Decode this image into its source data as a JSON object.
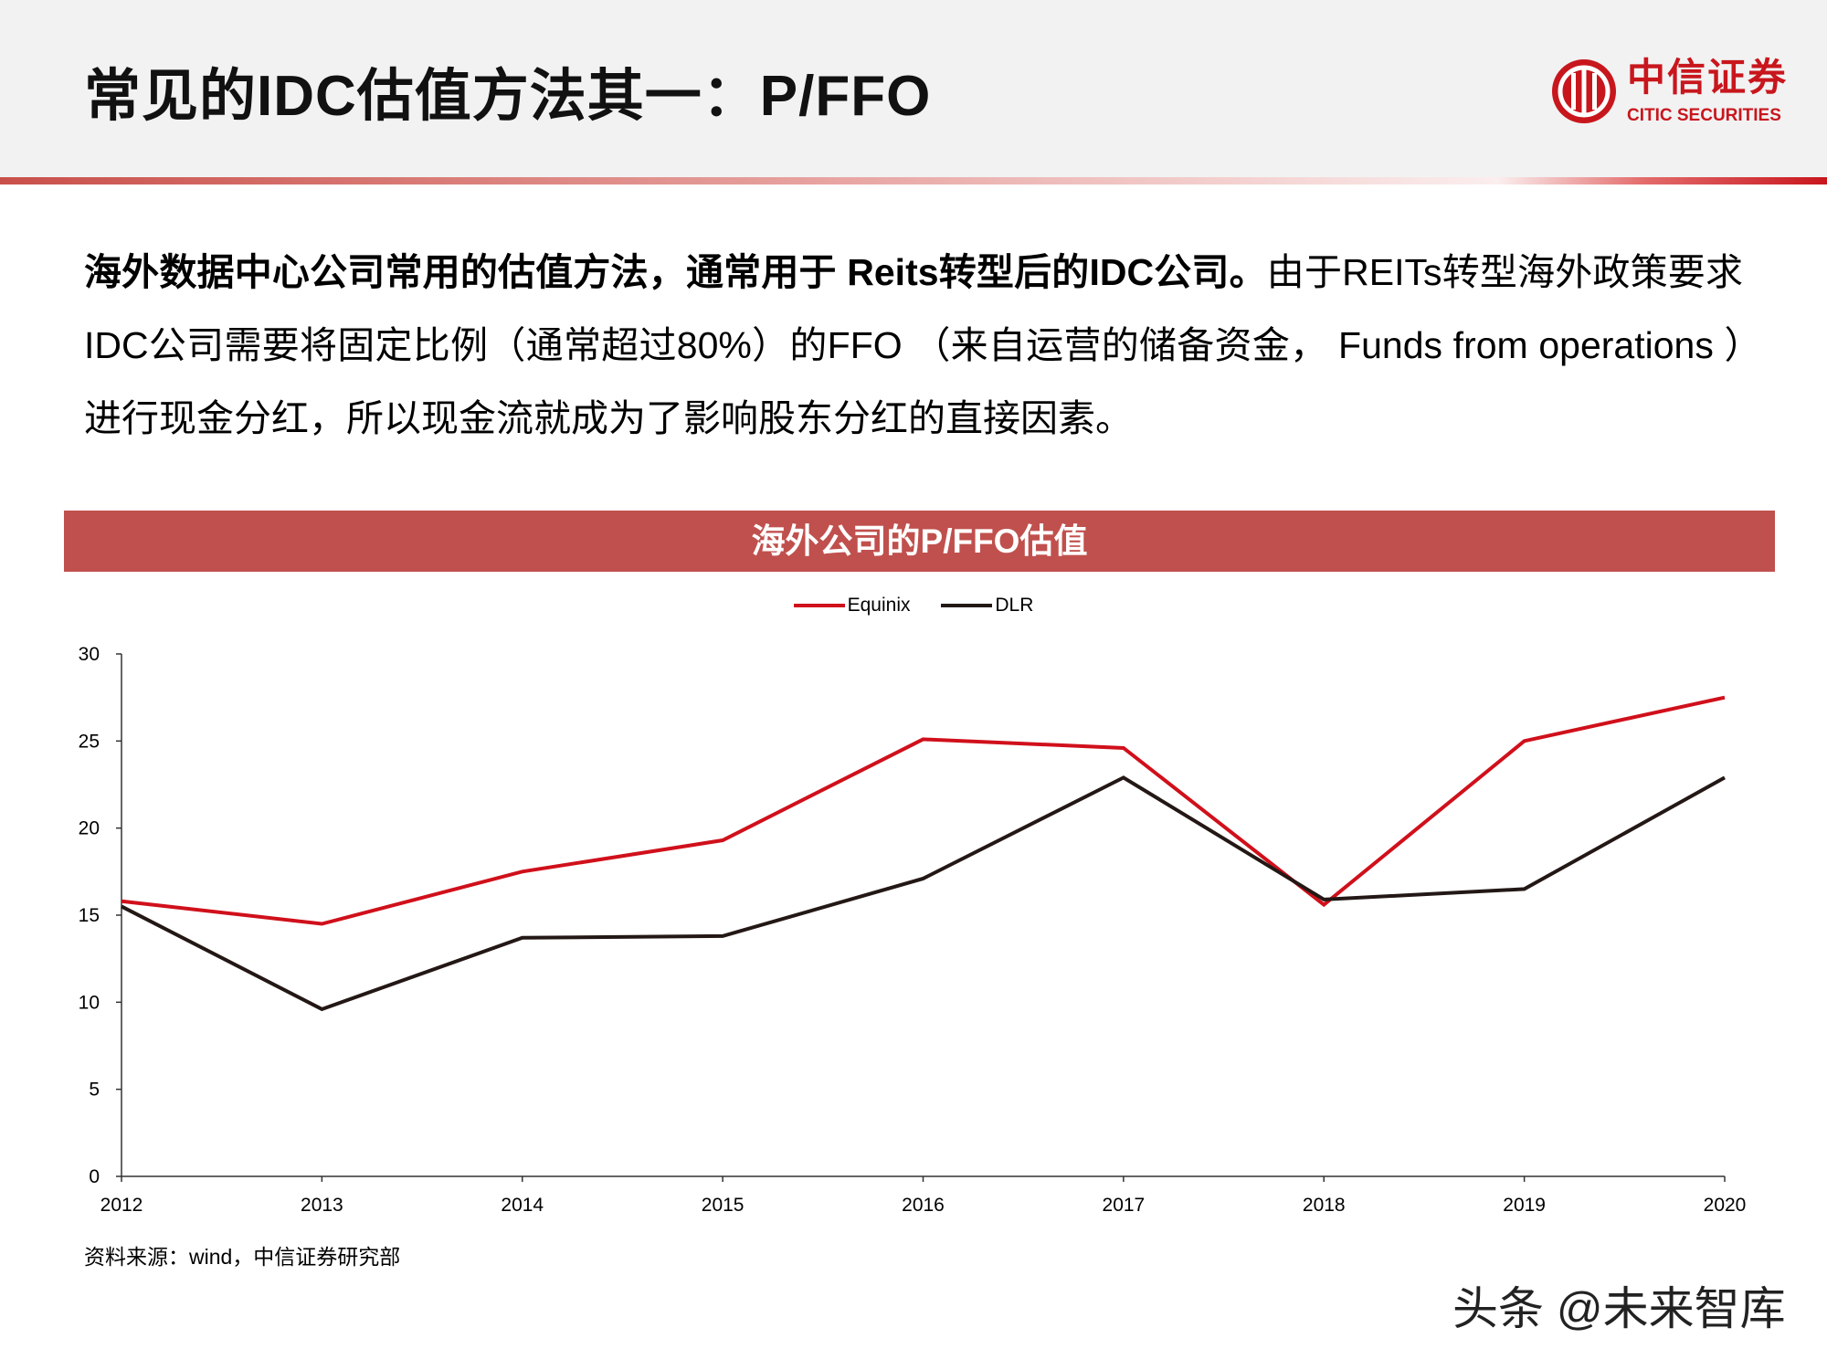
{
  "header": {
    "title": "常见的IDC估值方法其一：P/FFO",
    "logo_cn": "中信证券",
    "logo_en": "CITIC SECURITIES"
  },
  "body": {
    "bold_text": "海外数据中心公司常用的估值方法，通常用于 Reits转型后的IDC公司。",
    "normal_text": "由于REITs转型海外政策要求IDC公司需要将固定比例（通常超过80%）的FFO （来自运营的储备资金， Funds from operations ）进行现金分红，所以现金流就成为了影响股东分红的直接因素。"
  },
  "chart_data": {
    "type": "line",
    "title": "海外公司的P/FFO估值",
    "xlabel": "",
    "ylabel": "",
    "x": [
      "2012",
      "2013",
      "2014",
      "2015",
      "2016",
      "2017",
      "2018",
      "2019",
      "2020"
    ],
    "ylim": [
      0,
      30
    ],
    "yticks": [
      "0",
      "5",
      "10",
      "15",
      "20",
      "25",
      "30"
    ],
    "grid": false,
    "legend_position": "top-center",
    "series": [
      {
        "name": "Equinix",
        "color": "#d0101b",
        "values": [
          15.8,
          14.5,
          17.5,
          19.3,
          25.1,
          24.6,
          15.6,
          25.0,
          27.5
        ]
      },
      {
        "name": "DLR",
        "color": "#231815",
        "values": [
          15.5,
          9.6,
          13.7,
          13.8,
          17.1,
          22.9,
          15.9,
          16.5,
          22.9
        ]
      }
    ]
  },
  "footer": {
    "source": "资料来源：wind，中信证券研究部",
    "watermark": "头条 @未来智库"
  }
}
